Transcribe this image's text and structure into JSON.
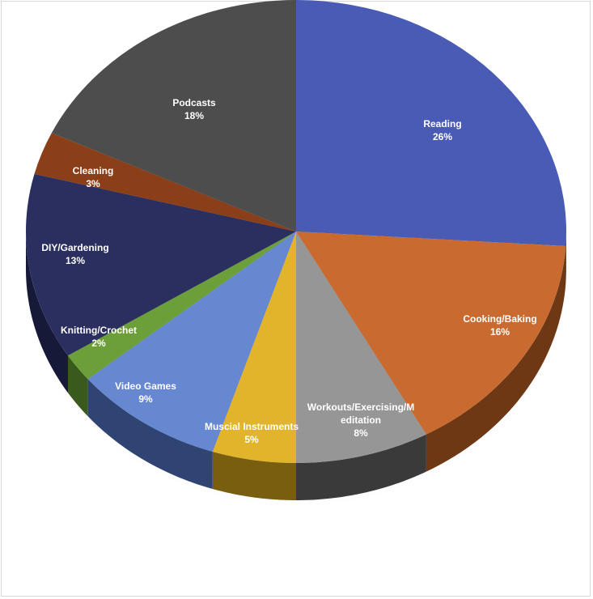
{
  "chart_data": {
    "type": "pie",
    "style": "3d-pie",
    "legend": "none",
    "slices": [
      {
        "label": "Reading",
        "value": 26,
        "value_label": "26%",
        "color": "#4a5bb6",
        "side_color": "#2e3a78"
      },
      {
        "label": "Cooking/Baking",
        "value": 16,
        "value_label": "16%",
        "color": "#c96b30",
        "side_color": "#6e3815"
      },
      {
        "label_lines": [
          "Workouts/Exercising/M",
          "editation"
        ],
        "label": "Workouts/Exercising/Meditation",
        "value": 8,
        "value_label": "8%",
        "color": "#969696",
        "side_color": "#3a3a3a"
      },
      {
        "label": "Muscial Instruments",
        "value": 5,
        "value_label": "5%",
        "color": "#e2b42c",
        "side_color": "#7a5e10"
      },
      {
        "label": "Video Games",
        "value": 9,
        "value_label": "9%",
        "color": "#6688d0",
        "side_color": "#2f4473"
      },
      {
        "label": "Knitting/Crochet",
        "value": 2,
        "value_label": "2%",
        "color": "#6c9f3a",
        "side_color": "#3a5a1d"
      },
      {
        "label": "DIY/Gardening",
        "value": 13,
        "value_label": "13%",
        "color": "#2a2f5f",
        "side_color": "#161a38"
      },
      {
        "label": "Cleaning",
        "value": 3,
        "value_label": "3%",
        "color": "#8a3f19",
        "side_color": "#4d220c"
      },
      {
        "label": "Podcasts",
        "value": 18,
        "value_label": "18%",
        "color": "#4d4d4d",
        "side_color": "#2a2a2a"
      }
    ]
  }
}
